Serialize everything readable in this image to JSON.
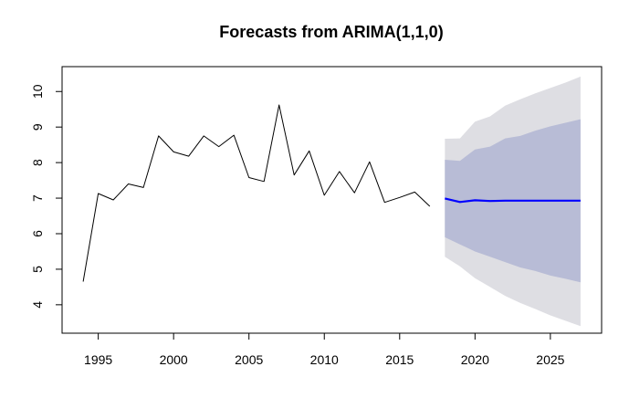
{
  "chart_data": {
    "type": "line",
    "title": "Forecasts from ARIMA(1,1,0)",
    "xlabel": "",
    "ylabel": "",
    "xlim": [
      1992.6,
      2028.4
    ],
    "ylim": [
      3.2,
      10.7
    ],
    "x_ticks": [
      1995,
      2000,
      2005,
      2010,
      2015,
      2020,
      2025
    ],
    "y_ticks": [
      4,
      5,
      6,
      7,
      8,
      9,
      10
    ],
    "grid": false,
    "legend": "none",
    "series": [
      {
        "role": "history",
        "x": [
          1994,
          1995,
          1996,
          1997,
          1998,
          1999,
          2000,
          2001,
          2002,
          2003,
          2004,
          2005,
          2006,
          2007,
          2008,
          2009,
          2010,
          2011,
          2012,
          2013,
          2014,
          2015,
          2016,
          2017
        ],
        "values": [
          4.65,
          7.13,
          6.95,
          7.4,
          7.3,
          8.75,
          8.3,
          8.18,
          8.75,
          8.45,
          8.77,
          7.58,
          7.47,
          9.62,
          7.65,
          8.33,
          7.08,
          7.75,
          7.15,
          8.02,
          6.88,
          7.02,
          7.17,
          6.77
        ],
        "color": "#000000"
      },
      {
        "role": "forecast",
        "x": [
          2018,
          2019,
          2020,
          2021,
          2022,
          2023,
          2024,
          2025,
          2026,
          2027
        ],
        "values": [
          6.99,
          6.89,
          6.94,
          6.92,
          6.93,
          6.93,
          6.93,
          6.93,
          6.93,
          6.93
        ],
        "color": "#0000ff"
      }
    ],
    "intervals": [
      {
        "level": 95,
        "color": "#dedee3",
        "x": [
          2018,
          2019,
          2020,
          2021,
          2022,
          2023,
          2024,
          2025,
          2026,
          2027
        ],
        "lower": [
          5.35,
          5.08,
          4.75,
          4.5,
          4.25,
          4.05,
          3.88,
          3.7,
          3.55,
          3.4
        ],
        "upper": [
          8.67,
          8.68,
          9.15,
          9.3,
          9.6,
          9.78,
          9.95,
          10.1,
          10.25,
          10.42
        ]
      },
      {
        "level": 80,
        "color": "#b8bcd6",
        "x": [
          2018,
          2019,
          2020,
          2021,
          2022,
          2023,
          2024,
          2025,
          2026,
          2027
        ],
        "lower": [
          5.9,
          5.7,
          5.5,
          5.35,
          5.2,
          5.05,
          4.95,
          4.82,
          4.73,
          4.63
        ],
        "upper": [
          8.08,
          8.05,
          8.37,
          8.45,
          8.68,
          8.75,
          8.9,
          9.02,
          9.12,
          9.22
        ]
      }
    ]
  }
}
